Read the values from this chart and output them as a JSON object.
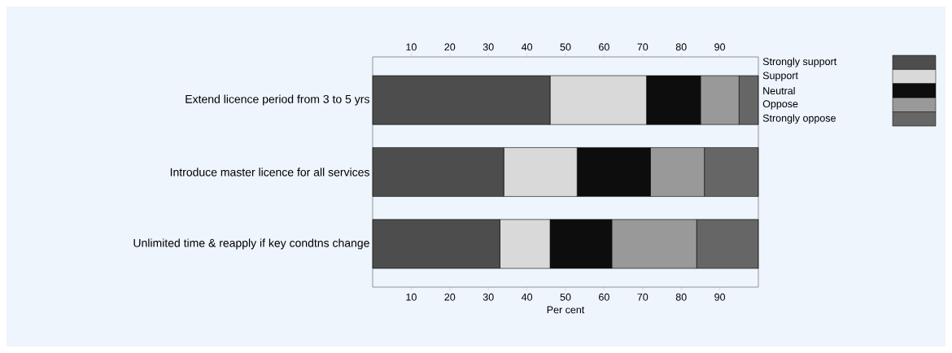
{
  "chart_data": {
    "type": "bar",
    "orientation": "horizontal",
    "stacked": true,
    "xlabel": "Per cent",
    "categories": [
      "Extend licence period from 3 to 5 yrs",
      "Introduce master licence for all services",
      "Unlimited time & reapply if key condtns change"
    ],
    "series": [
      {
        "name": "Strongly support",
        "color": "#4d4d4d",
        "values": [
          46,
          34,
          33
        ]
      },
      {
        "name": "Support",
        "color": "#d9d9d9",
        "values": [
          25,
          19,
          13
        ]
      },
      {
        "name": "Neutral",
        "color": "#0d0d0d",
        "values": [
          14,
          19,
          16
        ]
      },
      {
        "name": "Oppose",
        "color": "#999999",
        "values": [
          10,
          14,
          22
        ]
      },
      {
        "name": "Strongly oppose",
        "color": "#666666",
        "values": [
          5,
          14,
          16
        ]
      }
    ],
    "xlim": [
      0,
      100
    ],
    "xticks": [
      10,
      20,
      30,
      40,
      50,
      60,
      70,
      80,
      90
    ],
    "x2lim": [
      0,
      100
    ],
    "x2ticks": [
      10,
      20,
      30,
      40,
      50,
      60,
      70,
      80,
      90
    ],
    "grid": false,
    "legend": "right"
  }
}
